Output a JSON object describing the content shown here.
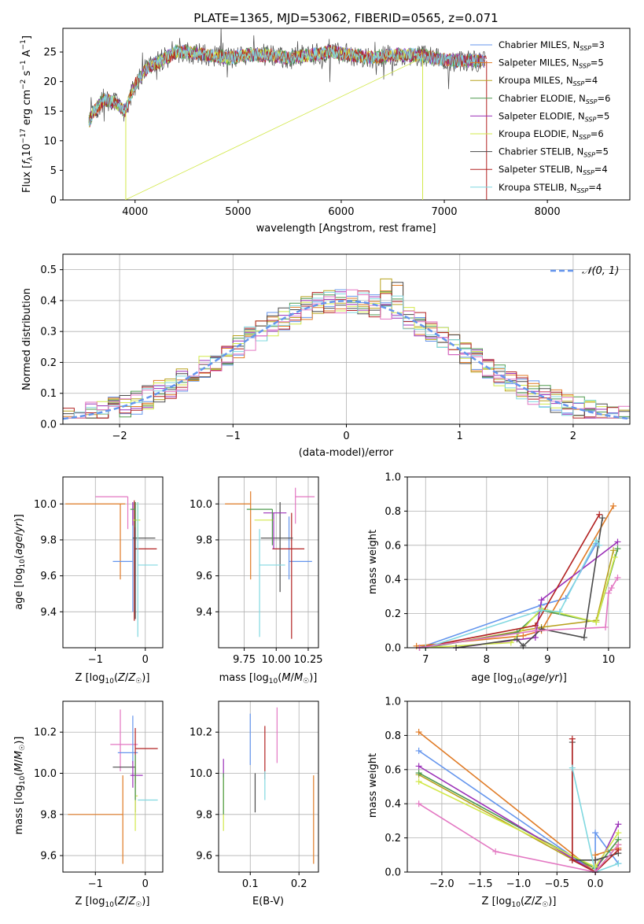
{
  "chart_data": [
    {
      "id": "spectrum",
      "type": "line",
      "title": "PLATE=1365, MJD=53062, FIBERID=0565, z=0.071",
      "xlabel": "wavelength [Angstrom, rest frame]",
      "ylabel": "Flux [f_λ 10^-17 erg cm^-2 s^-1 A^-1]",
      "xlim": [
        3300,
        8800
      ],
      "ylim": [
        0,
        29
      ],
      "xticks": [
        4000,
        5000,
        6000,
        7000,
        8000
      ],
      "yticks": [
        0,
        5,
        10,
        15,
        20,
        25
      ],
      "legend_placement": "upper right",
      "series": [
        {
          "name": "Chabrier MILES, N_SSP=3",
          "color": "#6495ed"
        },
        {
          "name": "Salpeter MILES, N_SSP=5",
          "color": "#e07b26"
        },
        {
          "name": "Kroupa MILES, N_SSP=4",
          "color": "#b8a21e"
        },
        {
          "name": "Chabrier ELODIE, N_SSP=6",
          "color": "#4e9a4e"
        },
        {
          "name": "Salpeter ELODIE, N_SSP=5",
          "color": "#9b30b8"
        },
        {
          "name": "Kroupa ELODIE, N_SSP=6",
          "color": "#d2e84a"
        },
        {
          "name": "Chabrier STELIB, N_SSP=5",
          "color": "#4a4a4a"
        },
        {
          "name": "Salpeter STELIB, N_SSP=4",
          "color": "#b22222"
        },
        {
          "name": "Kroupa STELIB, N_SSP=4",
          "color": "#80d8e0"
        }
      ],
      "continuum": {
        "x": [
          3550,
          3600,
          3700,
          3800,
          3900,
          4000,
          4100,
          4200,
          4300,
          4400,
          4500,
          4700,
          4900,
          5100,
          5300,
          5500,
          5700,
          5900,
          6100,
          6300,
          6500,
          6700,
          6900,
          7100,
          7300,
          7400
        ],
        "y": [
          13,
          15,
          17,
          16.5,
          15,
          19.5,
          22,
          23,
          24,
          25,
          25,
          24.5,
          24,
          24.5,
          24.5,
          24,
          24.5,
          25,
          24.5,
          24,
          24.5,
          24.5,
          24,
          23.5,
          23.5,
          23.5
        ]
      }
    },
    {
      "id": "residuals",
      "type": "line",
      "xlabel": "(data-model)/error",
      "ylabel": "Normed distribution",
      "xlim": [
        -2.5,
        2.5
      ],
      "ylim": [
        0,
        0.55
      ],
      "xticks": [
        -2,
        -1,
        0,
        1,
        2
      ],
      "yticks": [
        0.0,
        0.1,
        0.2,
        0.3,
        0.4,
        0.5
      ],
      "grid": true,
      "legend": "𝒩(0, 1)",
      "legend_placement": "upper right",
      "normal_color": "#6495ed",
      "bin_width": 0.1
    },
    {
      "id": "age-vs-Z",
      "type": "errorbar",
      "xlabel": "Z [log10(Z/Z☉)]",
      "ylabel": "age [log10(age/yr)]",
      "xlim": [
        -1.65,
        0.35
      ],
      "ylim": [
        9.2,
        10.15
      ],
      "xticks": [
        -1,
        0
      ],
      "yticks": [
        9.4,
        9.6,
        9.8,
        10.0
      ],
      "points": [
        {
          "color": "#e07b26",
          "x": -0.5,
          "xerr": [
            1.1,
            0.1
          ],
          "y": 10.0,
          "yerr": [
            0.42,
            0.0
          ]
        },
        {
          "color": "#e377c2",
          "x": -0.35,
          "xerr": [
            0.65,
            0.0
          ],
          "y": 10.04,
          "yerr": [
            0.18,
            0.0
          ]
        },
        {
          "color": "#6495ed",
          "x": -0.25,
          "xerr": [
            0.4,
            0.0
          ],
          "y": 9.68,
          "yerr": [
            0.28,
            0.33
          ]
        },
        {
          "color": "#b22222",
          "x": -0.22,
          "xerr": [
            0.0,
            0.45
          ],
          "y": 9.75,
          "yerr": [
            0.4,
            0.27
          ]
        },
        {
          "color": "#4a4a4a",
          "x": -0.2,
          "xerr": [
            0.05,
            0.4
          ],
          "y": 9.81,
          "yerr": [
            0.45,
            0.2
          ]
        },
        {
          "color": "#9b30b8",
          "x": -0.25,
          "xerr": [
            0.0,
            0.0
          ],
          "y": 9.95,
          "yerr": [
            0.07,
            0.06
          ]
        },
        {
          "color": "#d2e84a",
          "x": -0.15,
          "xerr": [
            0.1,
            0.05
          ],
          "y": 9.91,
          "yerr": [
            0.1,
            0.1
          ]
        },
        {
          "color": "#4e9a4e",
          "x": -0.2,
          "xerr": [
            0.1,
            0.0
          ],
          "y": 9.97,
          "yerr": [
            0.1,
            0.04
          ]
        },
        {
          "color": "#80d8e0",
          "x": -0.15,
          "xerr": [
            0.0,
            0.4
          ],
          "y": 9.66,
          "yerr": [
            0.4,
            0.35
          ]
        }
      ]
    },
    {
      "id": "age-vs-mass",
      "type": "errorbar",
      "xlabel": "mass [log10(M/M☉)]",
      "xlim": [
        9.55,
        10.33
      ],
      "ylim": [
        9.2,
        10.15
      ],
      "xticks": [
        9.75,
        10.0,
        10.25
      ],
      "xticklabels": [
        "9.75",
        "10.00",
        "10.25"
      ],
      "yticks": [
        9.4,
        9.6,
        9.8,
        10.0
      ],
      "points": [
        {
          "color": "#e07b26",
          "x": 9.8,
          "xerr": [
            0.2,
            0.0
          ],
          "y": 10.0,
          "yerr": [
            0.42,
            0.07
          ]
        },
        {
          "color": "#e377c2",
          "x": 10.15,
          "xerr": [
            0.0,
            0.15
          ],
          "y": 10.04,
          "yerr": [
            0.15,
            0.05
          ]
        },
        {
          "color": "#6495ed",
          "x": 10.1,
          "xerr": [
            0.0,
            0.18
          ],
          "y": 9.68,
          "yerr": [
            0.1,
            0.25
          ]
        },
        {
          "color": "#b22222",
          "x": 10.12,
          "xerr": [
            0.15,
            0.1
          ],
          "y": 9.75,
          "yerr": [
            0.5,
            0.2
          ]
        },
        {
          "color": "#4a4a4a",
          "x": 10.03,
          "xerr": [
            0.15,
            0.1
          ],
          "y": 9.81,
          "yerr": [
            0.3,
            0.2
          ]
        },
        {
          "color": "#9b30b8",
          "x": 9.98,
          "xerr": [
            0.08,
            0.1
          ],
          "y": 9.95,
          "yerr": [
            0.2,
            0.0
          ]
        },
        {
          "color": "#d2e84a",
          "x": 9.88,
          "xerr": [
            0.05,
            0.1
          ],
          "y": 9.91,
          "yerr": [
            0.0,
            0.0
          ]
        },
        {
          "color": "#4e9a4e",
          "x": 9.97,
          "xerr": [
            0.2,
            0.0
          ],
          "y": 9.97,
          "yerr": [
            0.2,
            0.0
          ]
        },
        {
          "color": "#80d8e0",
          "x": 9.87,
          "xerr": [
            0.0,
            0.2
          ],
          "y": 9.66,
          "yerr": [
            0.4,
            0.2
          ]
        }
      ]
    },
    {
      "id": "massweight-vs-age",
      "type": "line",
      "xlabel": "age [log10(age/yr)]",
      "ylabel": "mass weight",
      "xlim": [
        6.7,
        10.35
      ],
      "ylim": [
        0,
        1.0
      ],
      "xticks": [
        7,
        8,
        9,
        10
      ],
      "yticks": [
        0.0,
        0.2,
        0.4,
        0.6,
        0.8,
        1.0
      ],
      "grid": true,
      "series": [
        {
          "color": "#6495ed",
          "x": [
            6.9,
            8.9,
            9.3,
            9.8
          ],
          "y": [
            0.0,
            0.25,
            0.29,
            0.61
          ]
        },
        {
          "color": "#e07b26",
          "x": [
            6.85,
            8.6,
            8.9,
            10.08
          ],
          "y": [
            0.01,
            0.07,
            0.1,
            0.83
          ]
        },
        {
          "color": "#b8a21e",
          "x": [
            7.0,
            8.9,
            9.8,
            10.08
          ],
          "y": [
            0.0,
            0.12,
            0.16,
            0.57
          ]
        },
        {
          "color": "#4e9a4e",
          "x": [
            7.0,
            8.5,
            8.9,
            9.8,
            10.15
          ],
          "y": [
            0.0,
            0.09,
            0.22,
            0.15,
            0.58
          ]
        },
        {
          "color": "#9b30b8",
          "x": [
            7.5,
            8.8,
            8.9,
            10.15
          ],
          "y": [
            0.0,
            0.06,
            0.28,
            0.62
          ]
        },
        {
          "color": "#d2e84a",
          "x": [
            7.0,
            8.4,
            8.9,
            9.8,
            10.1
          ],
          "y": [
            0.0,
            0.03,
            0.23,
            0.15,
            0.53
          ]
        },
        {
          "color": "#4a4a4a",
          "x": [
            7.5,
            8.5,
            8.6,
            8.9,
            9.6,
            9.9
          ],
          "y": [
            0.0,
            0.05,
            0.01,
            0.11,
            0.06,
            0.76
          ]
        },
        {
          "color": "#b22222",
          "x": [
            6.9,
            8.8,
            9.85
          ],
          "y": [
            0.0,
            0.13,
            0.78
          ]
        },
        {
          "color": "#80d8e0",
          "x": [
            7.0,
            8.9,
            9.2,
            9.8,
            9.85
          ],
          "y": [
            0.0,
            0.22,
            0.21,
            0.63,
            0.6
          ]
        },
        {
          "color": "#e377c2",
          "x": [
            6.9,
            8.8,
            9.95,
            10.0,
            10.05,
            10.15
          ],
          "y": [
            0.0,
            0.1,
            0.12,
            0.32,
            0.35,
            0.41
          ]
        }
      ]
    },
    {
      "id": "mass-vs-Z",
      "type": "errorbar",
      "xlabel": "Z [log10(Z/Z☉)]",
      "ylabel": "mass [log10(M/M☉)]",
      "xlim": [
        -1.65,
        0.35
      ],
      "ylim": [
        9.52,
        10.35
      ],
      "xticks": [
        -1,
        0
      ],
      "yticks": [
        9.6,
        9.8,
        10.0,
        10.2
      ],
      "points": [
        {
          "color": "#e07b26",
          "x": -0.45,
          "xerr": [
            1.1,
            0.0
          ],
          "y": 9.8,
          "yerr": [
            0.24,
            0.19
          ]
        },
        {
          "color": "#e377c2",
          "x": -0.5,
          "xerr": [
            0.2,
            0.35
          ],
          "y": 10.14,
          "yerr": [
            0.13,
            0.17
          ]
        },
        {
          "color": "#6495ed",
          "x": -0.25,
          "xerr": [
            0.3,
            0.1
          ],
          "y": 10.1,
          "yerr": [
            0.05,
            0.18
          ]
        },
        {
          "color": "#b22222",
          "x": -0.2,
          "xerr": [
            0.0,
            0.45
          ],
          "y": 10.12,
          "yerr": [
            0.17,
            0.1
          ]
        },
        {
          "color": "#4a4a4a",
          "x": -0.2,
          "xerr": [
            0.45,
            0.0
          ],
          "y": 10.03,
          "yerr": [
            0.22,
            0.0
          ]
        },
        {
          "color": "#9b30b8",
          "x": -0.25,
          "xerr": [
            0.05,
            0.2
          ],
          "y": 9.99,
          "yerr": [
            0.06,
            0.07
          ]
        },
        {
          "color": "#d2e84a",
          "x": -0.2,
          "xerr": [
            0.0,
            0.05
          ],
          "y": 9.89,
          "yerr": [
            0.17,
            0.18
          ]
        },
        {
          "color": "#4e9a4e",
          "x": -0.2,
          "xerr": [
            0.0,
            0.0
          ],
          "y": 9.93,
          "yerr": [
            0.06,
            0.16
          ]
        },
        {
          "color": "#80d8e0",
          "x": -0.15,
          "xerr": [
            0.0,
            0.4
          ],
          "y": 9.87,
          "yerr": [
            0.0,
            0.0
          ]
        }
      ]
    },
    {
      "id": "mass-vs-EBV",
      "type": "errorbar",
      "xlabel": "E(B-V)",
      "xlim": [
        0.035,
        0.24
      ],
      "ylim": [
        9.52,
        10.35
      ],
      "xticks": [
        0.1,
        0.2
      ],
      "yticks": [
        9.6,
        9.8,
        10.0,
        10.2
      ],
      "points": [
        {
          "color": "#e07b26",
          "x": 0.23,
          "y": 9.78,
          "yerr": [
            0.22,
            0.21
          ]
        },
        {
          "color": "#e377c2",
          "x": 0.155,
          "y": 10.18,
          "yerr": [
            0.13,
            0.14
          ]
        },
        {
          "color": "#6495ed",
          "x": 0.1,
          "y": 10.16,
          "yerr": [
            0.12,
            0.13
          ]
        },
        {
          "color": "#b22222",
          "x": 0.13,
          "y": 10.1,
          "yerr": [
            0.13,
            0.13
          ]
        },
        {
          "color": "#4a4a4a",
          "x": 0.11,
          "y": 9.91,
          "yerr": [
            0.1,
            0.09
          ]
        },
        {
          "color": "#9b30b8",
          "x": 0.045,
          "y": 10.02,
          "yerr": [
            0.04,
            0.05
          ]
        },
        {
          "color": "#d2e84a",
          "x": 0.045,
          "y": 9.86,
          "yerr": [
            0.14,
            0.12
          ]
        },
        {
          "color": "#4e9a4e",
          "x": 0.045,
          "y": 9.9,
          "yerr": [
            0.1,
            0.1
          ]
        },
        {
          "color": "#80d8e0",
          "x": 0.13,
          "y": 9.94,
          "yerr": [
            0.07,
            0.07
          ]
        }
      ]
    },
    {
      "id": "massweight-vs-Z",
      "type": "line",
      "xlabel": "Z [log10(Z/Z☉)]",
      "ylabel": "mass weight",
      "xlim": [
        -2.45,
        0.45
      ],
      "ylim": [
        0,
        1.0
      ],
      "xticks": [
        -2.0,
        -1.5,
        -1.0,
        -0.5,
        0.0
      ],
      "xticklabels": [
        "−2.0",
        "−1.5",
        "−1.0",
        "−0.5",
        "0.0"
      ],
      "yticks": [
        0.0,
        0.2,
        0.4,
        0.6,
        0.8,
        1.0
      ],
      "grid": true,
      "series": [
        {
          "color": "#6495ed",
          "x": [
            -2.3,
            0.0,
            0.0,
            0.3
          ],
          "y": [
            0.71,
            0.0,
            0.23,
            0.05
          ]
        },
        {
          "color": "#e07b26",
          "x": [
            -2.3,
            0.0,
            0.0,
            0.3
          ],
          "y": [
            0.82,
            0.0,
            0.1,
            0.14
          ]
        },
        {
          "color": "#b8a21e",
          "x": [
            -2.3,
            0.0,
            0.3
          ],
          "y": [
            0.57,
            0.0,
            0.16
          ]
        },
        {
          "color": "#4e9a4e",
          "x": [
            -2.3,
            0.0,
            0.3
          ],
          "y": [
            0.58,
            0.02,
            0.19
          ]
        },
        {
          "color": "#9b30b8",
          "x": [
            -2.3,
            0.0,
            0.3
          ],
          "y": [
            0.62,
            0.0,
            0.28
          ]
        },
        {
          "color": "#d2e84a",
          "x": [
            -2.3,
            0.0,
            0.3
          ],
          "y": [
            0.53,
            0.03,
            0.23
          ]
        },
        {
          "color": "#4a4a4a",
          "x": [
            -0.3,
            -0.3,
            0.0,
            0.3
          ],
          "y": [
            0.76,
            0.07,
            0.07,
            0.11
          ]
        },
        {
          "color": "#b22222",
          "x": [
            -0.3,
            -0.3,
            0.0,
            0.3
          ],
          "y": [
            0.78,
            0.07,
            0.0,
            0.13
          ]
        },
        {
          "color": "#80d8e0",
          "x": [
            -0.3,
            0.0,
            0.3
          ],
          "y": [
            0.61,
            0.0,
            0.05
          ]
        },
        {
          "color": "#e377c2",
          "x": [
            -2.3,
            -1.3,
            0.0,
            0.3
          ],
          "y": [
            0.4,
            0.12,
            0.0,
            0.16
          ]
        }
      ]
    }
  ]
}
